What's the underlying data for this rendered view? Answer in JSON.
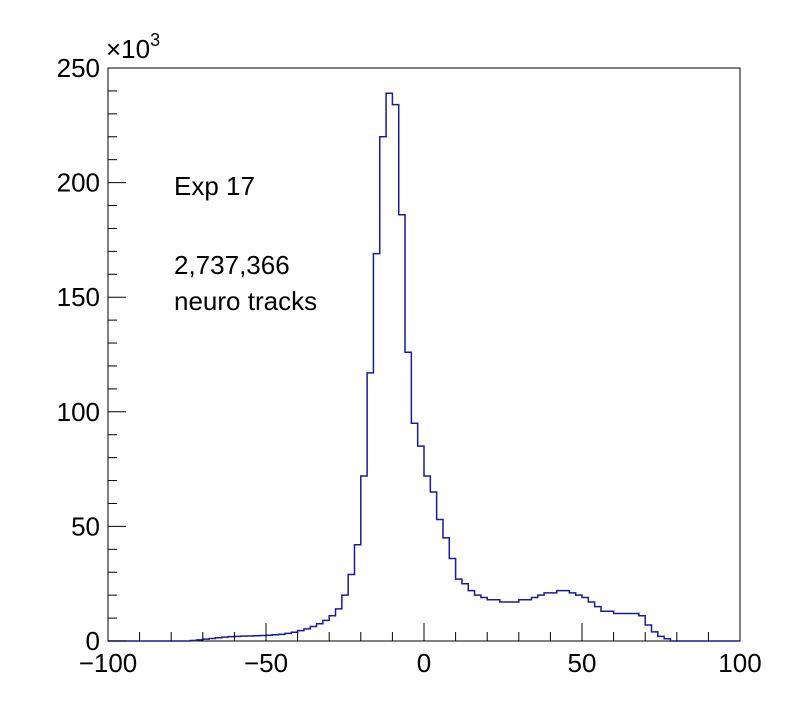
{
  "chart_data": {
    "type": "histogram",
    "title": "",
    "xlabel": "",
    "ylabel": "",
    "xlim": [
      -100,
      100
    ],
    "ylim": [
      0,
      250000
    ],
    "y_multiplier_label": "×10",
    "y_multiplier_exponent": "3",
    "x_ticks": [
      -100,
      -50,
      0,
      50,
      100
    ],
    "x_tick_labels": [
      "−100",
      "−50",
      "0",
      "50",
      "100"
    ],
    "y_ticks": [
      0,
      50000,
      100000,
      150000,
      200000,
      250000
    ],
    "y_tick_labels": [
      "0",
      "50",
      "100",
      "150",
      "200",
      "250"
    ],
    "grid": false,
    "legend": "none",
    "line_color": "#1a1a9c",
    "bin_width": 2,
    "bin_edges_start": -100,
    "counts": [
      0,
      0,
      0,
      0,
      0,
      0,
      0,
      0,
      0,
      0,
      0,
      0,
      0,
      200,
      500,
      800,
      1100,
      1400,
      1700,
      1900,
      2000,
      2100,
      2200,
      2300,
      2400,
      2500,
      2700,
      2900,
      3300,
      3800,
      4500,
      5300,
      6300,
      7500,
      9000,
      11000,
      14000,
      20000,
      29000,
      42000,
      72000,
      117000,
      169000,
      220000,
      239000,
      234000,
      186000,
      126000,
      95000,
      85000,
      72000,
      65000,
      53000,
      45000,
      36000,
      27000,
      25000,
      22000,
      20000,
      19000,
      18000,
      18000,
      17000,
      17000,
      17000,
      18000,
      18000,
      19000,
      20000,
      21000,
      21000,
      22000,
      22000,
      21000,
      20000,
      19000,
      17000,
      15000,
      13000,
      13000,
      12000,
      12000,
      12000,
      12000,
      11000,
      7000,
      4000,
      2000,
      1000,
      0,
      0,
      0,
      0,
      0,
      0,
      0,
      0,
      0,
      0,
      0
    ],
    "annotations": [
      "Exp 17",
      "2,737,366",
      "neuro tracks"
    ]
  }
}
